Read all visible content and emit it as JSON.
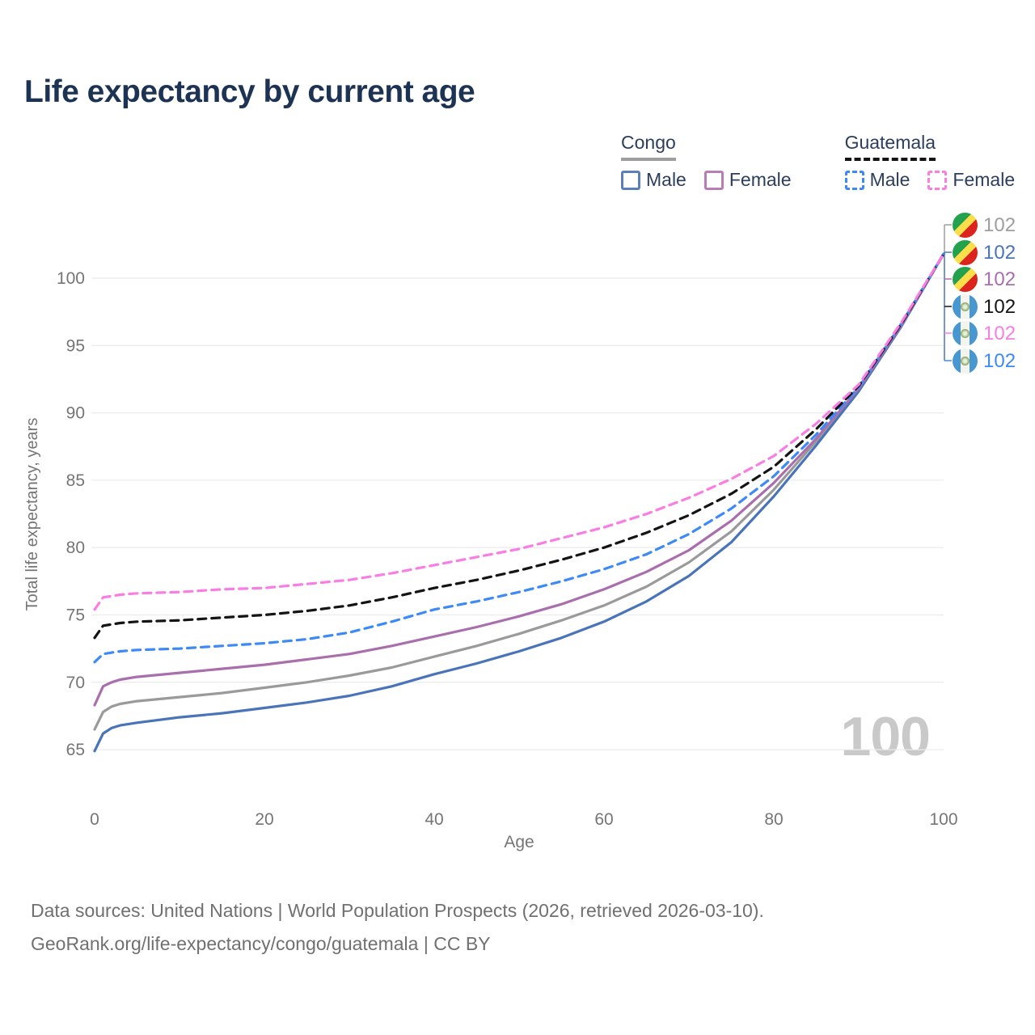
{
  "title": "Life expectancy by current age",
  "legend": {
    "congo": {
      "label": "Congo",
      "style": "solid",
      "line_color": "#9e9e9e",
      "male_label": "Male",
      "male_color": "#4a74b9",
      "female_label": "Female",
      "female_color": "#a96fad"
    },
    "guatemala": {
      "label": "Guatemala",
      "style": "dashed",
      "line_color": "#141414",
      "male_label": "Male",
      "male_color": "#3d8af7",
      "female_label": "Female",
      "female_color": "#f97ee4"
    }
  },
  "end_labels": [
    {
      "flag": "congo",
      "series": "Congo Both sexes",
      "value": "102",
      "color": "#9e9e9e"
    },
    {
      "flag": "congo",
      "series": "Congo Male",
      "value": "102",
      "color": "#4a74b9"
    },
    {
      "flag": "congo",
      "series": "Congo Female",
      "value": "102",
      "color": "#a96fad"
    },
    {
      "flag": "guatemala",
      "series": "Guatemala Both sexes",
      "value": "102",
      "color": "#141414"
    },
    {
      "flag": "guatemala",
      "series": "Guatemala Female",
      "value": "102",
      "color": "#f97ee4"
    },
    {
      "flag": "guatemala",
      "series": "Guatemala Male",
      "value": "102",
      "color": "#3d8af7"
    }
  ],
  "watermark": "100",
  "footer": {
    "line1": "Data sources: United Nations | World Population Prospects (2026, retrieved 2026-03-10).",
    "line2": "GeoRank.org/life-expectancy/congo/guatemala | CC BY"
  },
  "chart_data": {
    "type": "line",
    "title": "Life expectancy by current age",
    "xlabel": "Age",
    "ylabel": "Total life expectancy, years",
    "xlim": [
      0,
      100
    ],
    "ylim": [
      63,
      103
    ],
    "xticks": [
      0,
      20,
      40,
      60,
      80,
      100
    ],
    "yticks": [
      65,
      70,
      75,
      80,
      85,
      90,
      95,
      100
    ],
    "grid": "horizontal",
    "gridline_color": "#ececec",
    "axis_text_color": "#757575",
    "x": [
      0,
      1,
      2,
      3,
      5,
      10,
      15,
      20,
      25,
      30,
      35,
      40,
      45,
      50,
      55,
      60,
      65,
      70,
      75,
      80,
      85,
      90,
      95,
      100
    ],
    "series": [
      {
        "name": "Congo Both sexes",
        "country": "Congo",
        "sex": "Both",
        "color": "#9a9a9a",
        "dashed": false,
        "values": [
          66.5,
          67.8,
          68.2,
          68.4,
          68.6,
          68.9,
          69.2,
          69.6,
          70.0,
          70.5,
          71.1,
          71.9,
          72.7,
          73.6,
          74.6,
          75.7,
          77.1,
          78.9,
          81.2,
          84.3,
          87.9,
          91.7,
          96.5,
          101.8
        ]
      },
      {
        "name": "Congo Male",
        "country": "Congo",
        "sex": "Male",
        "color": "#4a74b9",
        "dashed": false,
        "values": [
          64.9,
          66.2,
          66.6,
          66.8,
          67.0,
          67.4,
          67.7,
          68.1,
          68.5,
          69.0,
          69.7,
          70.6,
          71.4,
          72.3,
          73.3,
          74.5,
          76.0,
          77.9,
          80.4,
          83.8,
          87.6,
          91.6,
          96.4,
          101.8
        ]
      },
      {
        "name": "Congo Female",
        "country": "Congo",
        "sex": "Female",
        "color": "#a96fad",
        "dashed": false,
        "values": [
          68.3,
          69.7,
          70.0,
          70.2,
          70.4,
          70.7,
          71.0,
          71.3,
          71.7,
          72.1,
          72.7,
          73.4,
          74.1,
          74.9,
          75.8,
          76.9,
          78.2,
          79.8,
          82.0,
          84.8,
          88.1,
          91.8,
          96.5,
          101.8
        ]
      },
      {
        "name": "Guatemala Male",
        "country": "Guatemala",
        "sex": "Male",
        "color": "#3d8af7",
        "dashed": true,
        "values": [
          71.5,
          72.1,
          72.2,
          72.3,
          72.4,
          72.5,
          72.7,
          72.9,
          73.2,
          73.7,
          74.5,
          75.4,
          76.0,
          76.7,
          77.5,
          78.4,
          79.5,
          81.0,
          82.9,
          85.3,
          88.4,
          91.9,
          96.6,
          101.8
        ]
      },
      {
        "name": "Guatemala Both sexes",
        "country": "Guatemala",
        "sex": "Both",
        "color": "#141414",
        "dashed": true,
        "values": [
          73.3,
          74.2,
          74.3,
          74.4,
          74.5,
          74.6,
          74.8,
          75.0,
          75.3,
          75.7,
          76.3,
          77.0,
          77.6,
          78.3,
          79.1,
          80.0,
          81.1,
          82.4,
          84.0,
          86.0,
          88.8,
          92.0,
          96.6,
          101.8
        ]
      },
      {
        "name": "Guatemala Female",
        "country": "Guatemala",
        "sex": "Female",
        "color": "#f97ee4",
        "dashed": true,
        "values": [
          75.4,
          76.3,
          76.4,
          76.5,
          76.6,
          76.7,
          76.9,
          77.0,
          77.3,
          77.6,
          78.1,
          78.7,
          79.3,
          79.9,
          80.7,
          81.5,
          82.5,
          83.7,
          85.1,
          86.8,
          89.2,
          92.1,
          96.7,
          101.8
        ]
      }
    ]
  }
}
